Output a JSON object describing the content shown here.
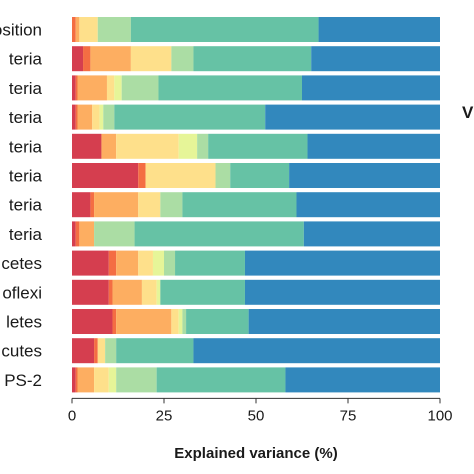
{
  "chart_data": {
    "type": "bar",
    "orientation": "horizontal",
    "stacked": true,
    "categories": [
      "osition",
      "teria",
      "teria",
      "teria",
      "teria",
      "teria",
      "teria",
      "teria",
      "cetes",
      "oflexi",
      "letes",
      "cutes",
      "PS-2"
    ],
    "series": [
      {
        "color": "#d53e4f",
        "values": [
          0,
          3,
          1,
          1,
          8,
          18,
          5,
          1,
          10,
          10,
          11,
          6,
          1
        ]
      },
      {
        "color": "#f46d43",
        "values": [
          1,
          2,
          0.5,
          0.5,
          0,
          2,
          1,
          1,
          2,
          1,
          1,
          1,
          0.5
        ]
      },
      {
        "color": "#fdae61",
        "values": [
          1,
          11,
          8,
          4,
          4,
          0,
          12,
          4,
          6,
          8,
          15,
          0,
          4.5
        ]
      },
      {
        "color": "#fee08b",
        "values": [
          5,
          11,
          2,
          2,
          17,
          19,
          6,
          0,
          4,
          4,
          2,
          2,
          4
        ]
      },
      {
        "color": "#e6f598",
        "values": [
          0,
          0,
          2,
          1,
          5,
          0,
          0,
          0,
          3,
          1,
          1,
          0,
          2
        ]
      },
      {
        "color": "#abdda4",
        "values": [
          9,
          6,
          10,
          3,
          3,
          4,
          6,
          11,
          3,
          0,
          1,
          3,
          11
        ]
      },
      {
        "color": "#66c2a5",
        "values": [
          51,
          32,
          39,
          41,
          27,
          16,
          31,
          46,
          19,
          23,
          17,
          21,
          35
        ]
      },
      {
        "color": "#3288bd",
        "values": [
          33,
          35,
          37.5,
          47.5,
          36,
          41,
          39,
          37,
          53,
          53,
          52,
          67,
          42
        ]
      }
    ],
    "xlabel": "Explained variance (%)",
    "ylabel": "",
    "xlim": [
      0,
      100
    ],
    "xticks": [
      "0",
      "25",
      "50",
      "75",
      "100"
    ],
    "grid": false,
    "legend_fragment": "V"
  }
}
